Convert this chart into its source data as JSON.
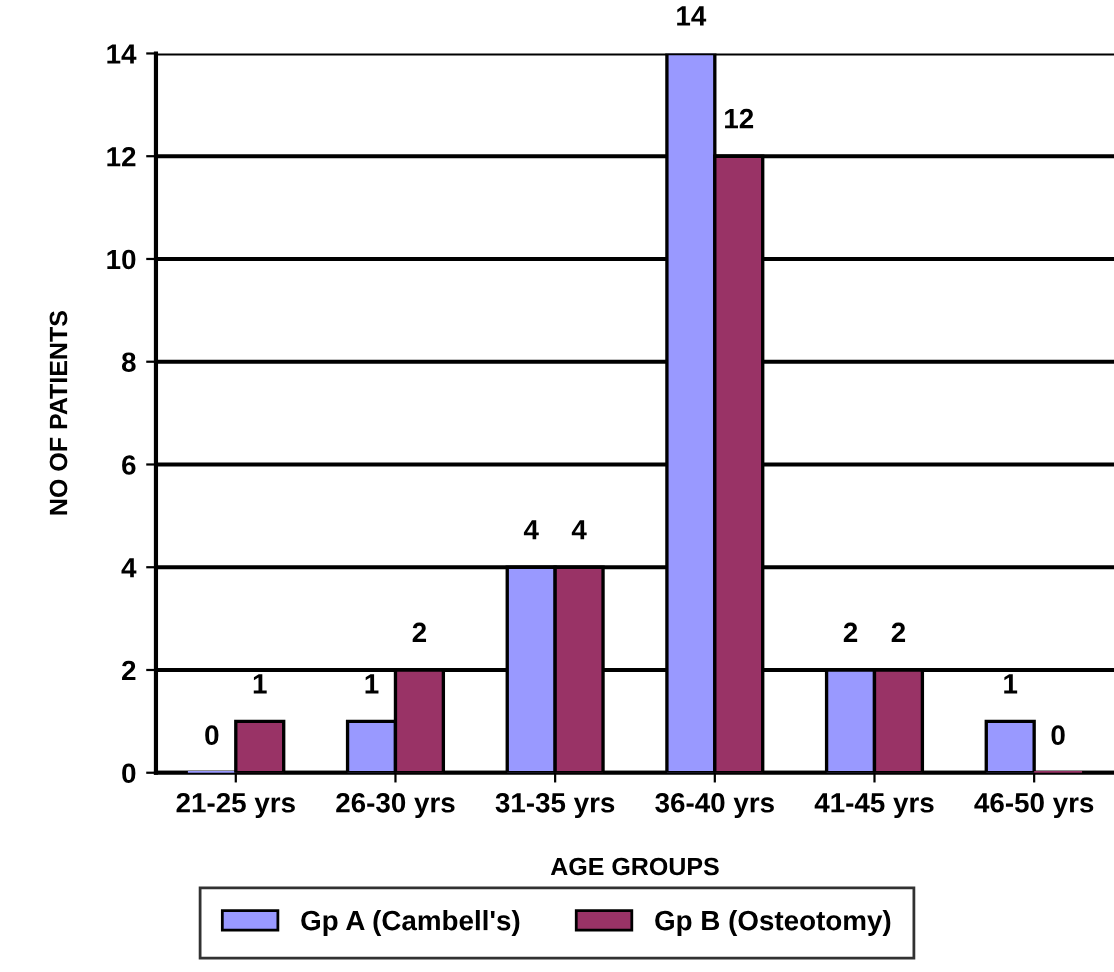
{
  "chart_data": {
    "type": "bar",
    "xlabel": "AGE GROUPS",
    "ylabel": "NO OF PATIENTS",
    "categories": [
      "21-25 yrs",
      "26-30 yrs",
      "31-35 yrs",
      "36-40 yrs",
      "41-45 yrs",
      "46-50 yrs"
    ],
    "series": [
      {
        "name": "Gp A (Cambell's)",
        "color": "#9999ff",
        "values": [
          0,
          1,
          4,
          14,
          2,
          1
        ]
      },
      {
        "name": "Gp B (Osteotomy)",
        "color": "#993366",
        "values": [
          1,
          2,
          4,
          12,
          2,
          0
        ]
      }
    ],
    "ylim": [
      0,
      14
    ],
    "yticks": [
      0,
      2,
      4,
      6,
      8,
      10,
      12,
      14
    ],
    "grid": "y",
    "legend": "bottom",
    "data_labels": true
  }
}
